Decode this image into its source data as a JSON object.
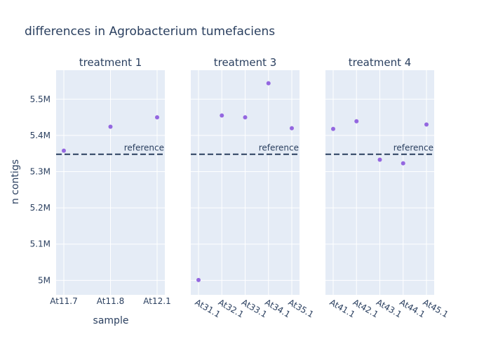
{
  "chart_data": {
    "type": "scatter",
    "title": "differences in Agrobacterium tumefaciens",
    "xlabel": "sample",
    "ylabel": "n contigs",
    "ylim": [
      4960000,
      5580000
    ],
    "yticks": [
      5000000,
      5100000,
      5200000,
      5300000,
      5400000,
      5500000
    ],
    "ytick_labels": [
      "5M",
      "5.1M",
      "5.2M",
      "5.3M",
      "5.4M",
      "5.5M"
    ],
    "reference": {
      "value": 5348000,
      "label": "reference",
      "style": "dashed"
    },
    "marker_color": "#9467e0",
    "background_color": "#e5ecf6",
    "grid": true,
    "panels": [
      {
        "title": "treatment 1",
        "categories": [
          "At11.7",
          "At11.8",
          "At12.1"
        ],
        "values": [
          5358000,
          5424000,
          5450000
        ]
      },
      {
        "title": "treatment 3",
        "categories": [
          "At31.1",
          "At32.1",
          "At33.1",
          "At34.1",
          "At35.1"
        ],
        "values": [
          5001000,
          5455000,
          5450000,
          5544000,
          5420000
        ]
      },
      {
        "title": "treatment 4",
        "categories": [
          "At41.1",
          "At42.1",
          "At43.1",
          "At44.1",
          "At45.1"
        ],
        "values": [
          5418000,
          5439000,
          5333000,
          5323000,
          5430000
        ]
      }
    ]
  }
}
